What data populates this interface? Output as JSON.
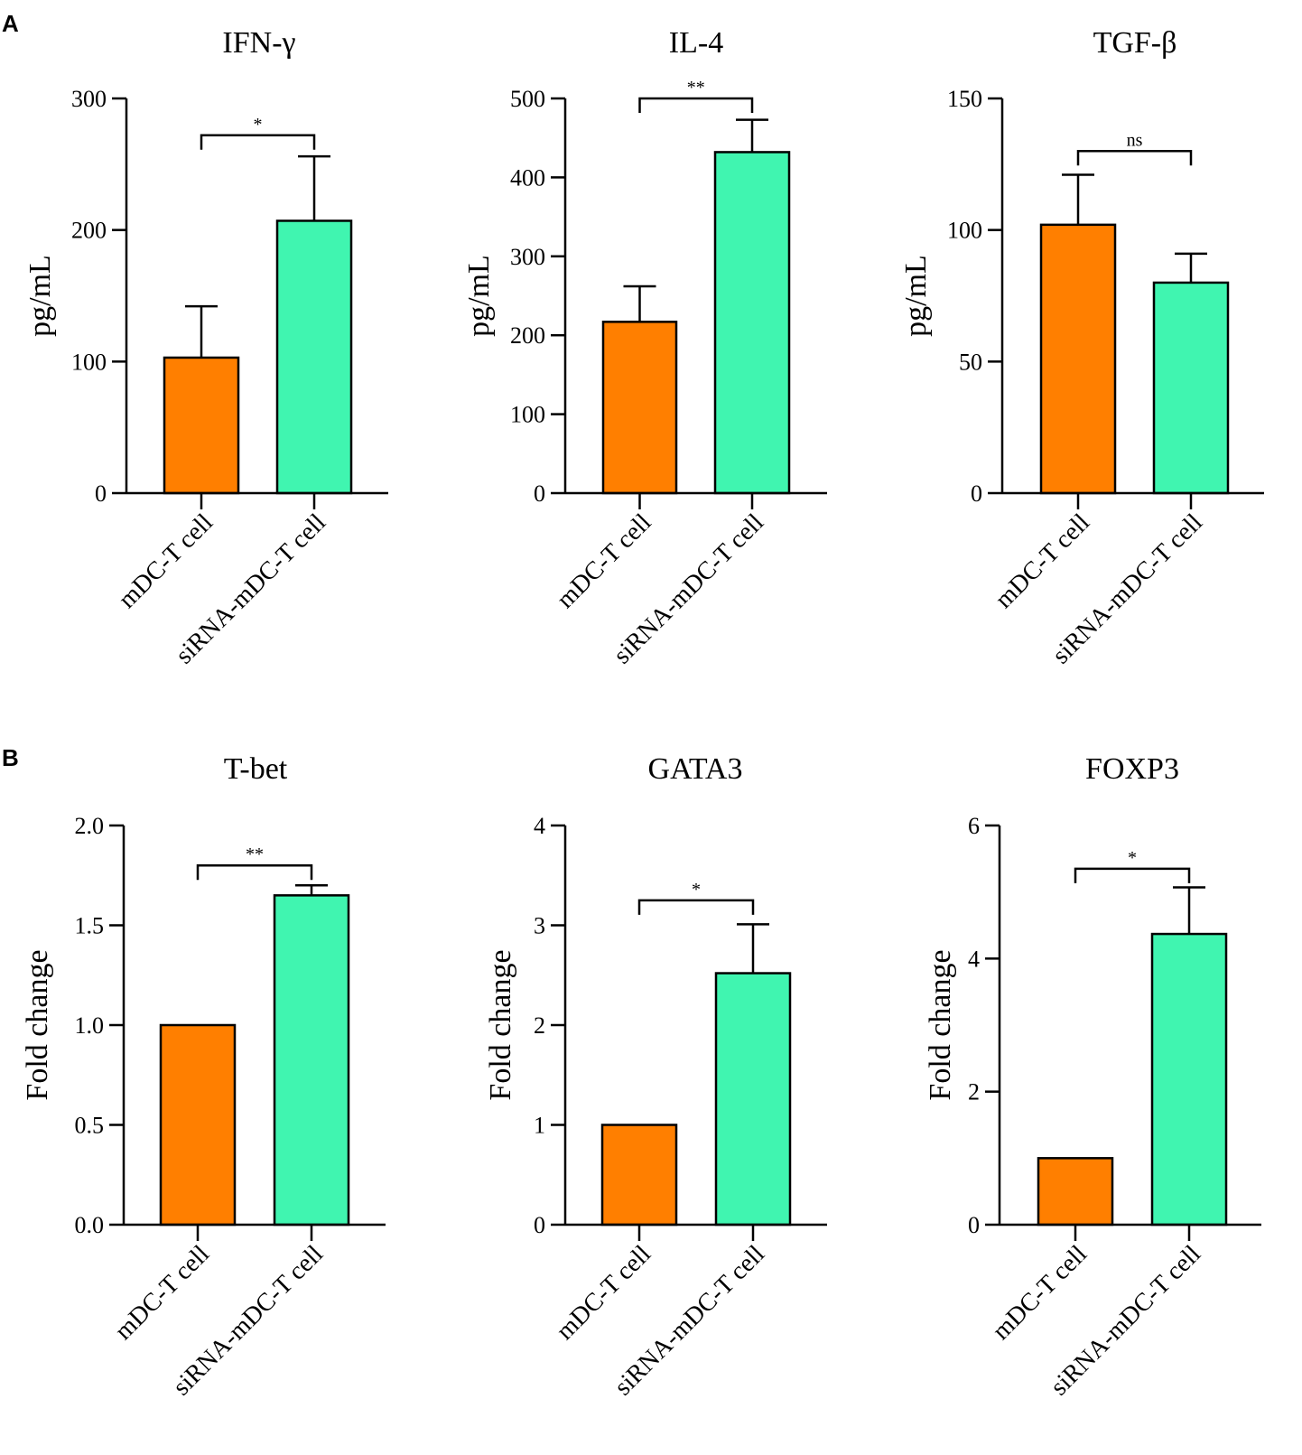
{
  "panels": {
    "a": "A",
    "b": "B"
  },
  "colors": {
    "group1": "#ff7f00",
    "group2": "#40f5b0"
  },
  "chart_data": [
    {
      "type": "bar",
      "title": "IFN-γ",
      "ylabel": "pg/mL",
      "categories": [
        "mDC-T cell",
        "siRNA-mDC-T cell"
      ],
      "values": [
        103,
        207
      ],
      "errors": [
        39,
        49
      ],
      "ylim": [
        0,
        300
      ],
      "yticks": [
        0,
        100,
        200,
        300
      ],
      "tick_labels": [
        "0",
        "100",
        "200",
        "300"
      ],
      "significance": "*",
      "bracket_y": 272
    },
    {
      "type": "bar",
      "title": "IL-4",
      "ylabel": "pg/mL",
      "categories": [
        "mDC-T cell",
        "siRNA-mDC-T cell"
      ],
      "values": [
        217,
        432
      ],
      "errors": [
        45,
        41
      ],
      "ylim": [
        0,
        500
      ],
      "yticks": [
        0,
        100,
        200,
        300,
        400,
        500
      ],
      "tick_labels": [
        "0",
        "100",
        "200",
        "300",
        "400",
        "500"
      ],
      "significance": "**",
      "bracket_y": 500
    },
    {
      "type": "bar",
      "title": "TGF-β",
      "ylabel": "pg/mL",
      "categories": [
        "mDC-T cell",
        "siRNA-mDC-T cell"
      ],
      "values": [
        102,
        80
      ],
      "errors": [
        19,
        11
      ],
      "ylim": [
        0,
        150
      ],
      "yticks": [
        0,
        50,
        100,
        150
      ],
      "tick_labels": [
        "0",
        "50",
        "100",
        "150"
      ],
      "significance": "ns",
      "bracket_y": 130
    },
    {
      "type": "bar",
      "title": "T-bet",
      "ylabel": "Fold change",
      "categories": [
        "mDC-T cell",
        "siRNA-mDC-T cell"
      ],
      "values": [
        1.0,
        1.65
      ],
      "errors": [
        0,
        0.05
      ],
      "ylim": [
        0,
        2.0
      ],
      "yticks": [
        0,
        0.5,
        1.0,
        1.5,
        2.0
      ],
      "tick_labels": [
        "0.0",
        "0.5",
        "1.0",
        "1.5",
        "2.0"
      ],
      "significance": "**",
      "bracket_y": 1.8
    },
    {
      "type": "bar",
      "title": "GATA3",
      "ylabel": "Fold change",
      "categories": [
        "mDC-T cell",
        "siRNA-mDC-T cell"
      ],
      "values": [
        1.0,
        2.52
      ],
      "errors": [
        0,
        0.49
      ],
      "ylim": [
        0,
        4
      ],
      "yticks": [
        0,
        1,
        2,
        3,
        4
      ],
      "tick_labels": [
        "0",
        "1",
        "2",
        "3",
        "4"
      ],
      "significance": "*",
      "bracket_y": 3.25
    },
    {
      "type": "bar",
      "title": "FOXP3",
      "ylabel": "Fold change",
      "categories": [
        "mDC-T cell",
        "siRNA-mDC-T cell"
      ],
      "values": [
        1.0,
        4.37
      ],
      "errors": [
        0,
        0.7
      ],
      "ylim": [
        0,
        6
      ],
      "yticks": [
        0,
        2,
        4,
        6
      ],
      "tick_labels": [
        "0",
        "2",
        "4",
        "6"
      ],
      "significance": "*",
      "bracket_y": 5.35
    }
  ]
}
